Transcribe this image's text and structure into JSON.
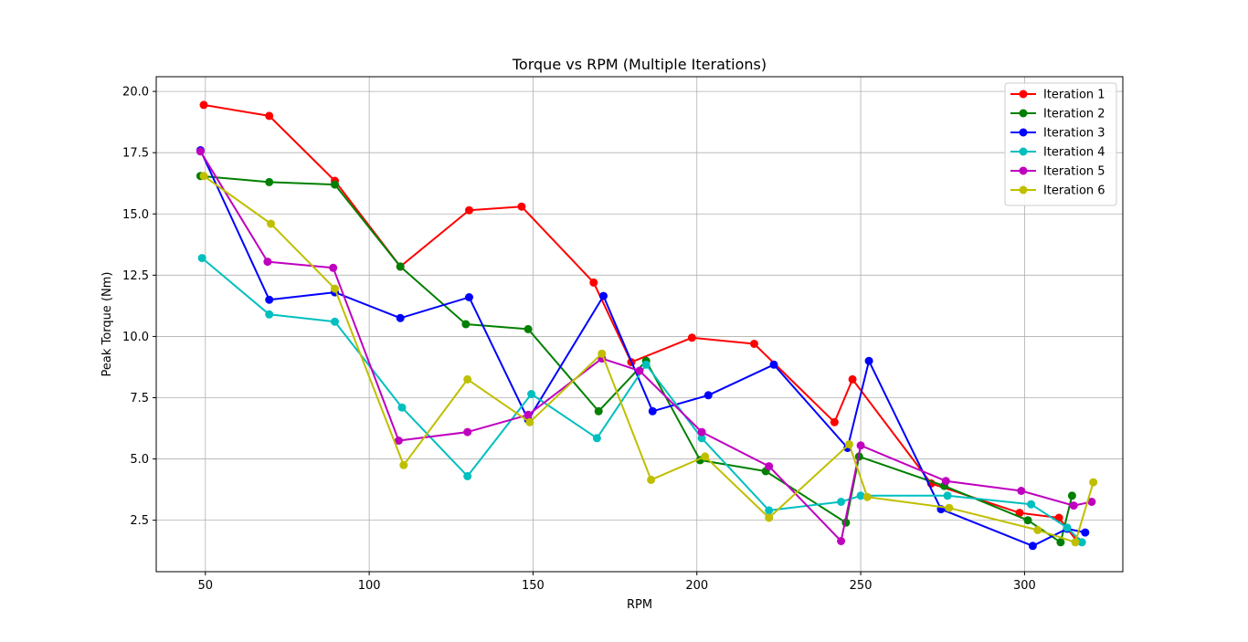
{
  "chart_data": {
    "type": "line",
    "title": "Torque vs RPM (Multiple Iterations)",
    "xlabel": "RPM",
    "ylabel": "Peak Torque (Nm)",
    "xlim": [
      35,
      330
    ],
    "ylim": [
      0.4,
      20.6
    ],
    "xticks": [
      50,
      100,
      150,
      200,
      250,
      300
    ],
    "xtick_labels": [
      "50",
      "100",
      "150",
      "200",
      "250",
      "300"
    ],
    "yticks": [
      2.5,
      5.0,
      7.5,
      10.0,
      12.5,
      15.0,
      17.5,
      20.0
    ],
    "ytick_labels": [
      "2.5",
      "5.0",
      "7.5",
      "10.0",
      "12.5",
      "15.0",
      "17.5",
      "20.0"
    ],
    "grid": true,
    "legend_position": "top-right",
    "series": [
      {
        "name": "Iteration 1",
        "color": "#ff0000",
        "points": [
          [
            49.5,
            19.45
          ],
          [
            69.5,
            19.0
          ],
          [
            89.5,
            16.35
          ],
          [
            109.5,
            12.85
          ],
          [
            130.5,
            15.15
          ],
          [
            146.5,
            15.3
          ],
          [
            168.5,
            12.2
          ],
          [
            180,
            8.95
          ],
          [
            198.5,
            9.95
          ],
          [
            217.5,
            9.7
          ],
          [
            242,
            6.5
          ],
          [
            247.5,
            8.25
          ],
          [
            271.5,
            4.0
          ],
          [
            298.5,
            2.8
          ],
          [
            310.5,
            2.6
          ],
          [
            316,
            1.65
          ]
        ]
      },
      {
        "name": "Iteration 2",
        "color": "#008000",
        "points": [
          [
            48.5,
            16.55
          ],
          [
            69.5,
            16.3
          ],
          [
            89.5,
            16.2
          ],
          [
            109.5,
            12.85
          ],
          [
            129.5,
            10.5
          ],
          [
            148.5,
            10.3
          ],
          [
            170,
            6.95
          ],
          [
            184.5,
            9.0
          ],
          [
            201,
            4.95
          ],
          [
            221,
            4.5
          ],
          [
            245.5,
            2.4
          ],
          [
            249.5,
            5.1
          ],
          [
            275.5,
            3.9
          ],
          [
            301,
            2.5
          ],
          [
            311,
            1.6
          ],
          [
            314.5,
            3.5
          ]
        ]
      },
      {
        "name": "Iteration 3",
        "color": "#0000ff",
        "points": [
          [
            48.5,
            17.6
          ],
          [
            69.5,
            11.5
          ],
          [
            89.5,
            11.8
          ],
          [
            109.5,
            10.75
          ],
          [
            130.5,
            11.6
          ],
          [
            148.5,
            6.6
          ],
          [
            171.5,
            11.65
          ],
          [
            186.5,
            6.95
          ],
          [
            203.5,
            7.6
          ],
          [
            223.5,
            8.85
          ],
          [
            246,
            5.45
          ],
          [
            252.5,
            9.0
          ],
          [
            274.5,
            2.95
          ],
          [
            302.5,
            1.45
          ],
          [
            313,
            2.15
          ],
          [
            318.5,
            2.0
          ]
        ]
      },
      {
        "name": "Iteration 4",
        "color": "#00bfbf",
        "points": [
          [
            49,
            13.2
          ],
          [
            69.5,
            10.9
          ],
          [
            89.5,
            10.6
          ],
          [
            110,
            7.1
          ],
          [
            130,
            4.3
          ],
          [
            149.5,
            7.65
          ],
          [
            169.5,
            5.85
          ],
          [
            184.5,
            8.85
          ],
          [
            201.5,
            5.85
          ],
          [
            222,
            2.9
          ],
          [
            244,
            3.25
          ],
          [
            250,
            3.5
          ],
          [
            276.5,
            3.5
          ],
          [
            302,
            3.15
          ],
          [
            313,
            2.2
          ],
          [
            317.5,
            1.6
          ]
        ]
      },
      {
        "name": "Iteration 5",
        "color": "#bf00bf",
        "points": [
          [
            48.5,
            17.55
          ],
          [
            69,
            13.05
          ],
          [
            89,
            12.8
          ],
          [
            109,
            5.75
          ],
          [
            130,
            6.1
          ],
          [
            148.5,
            6.8
          ],
          [
            171,
            9.1
          ],
          [
            182.5,
            8.6
          ],
          [
            201.5,
            6.1
          ],
          [
            222,
            4.7
          ],
          [
            244,
            1.65
          ],
          [
            250,
            5.55
          ],
          [
            276,
            4.1
          ],
          [
            299,
            3.7
          ],
          [
            315,
            3.1
          ],
          [
            320.5,
            3.25
          ]
        ]
      },
      {
        "name": "Iteration 6",
        "color": "#bfbf00",
        "points": [
          [
            49.5,
            16.55
          ],
          [
            70,
            14.6
          ],
          [
            89.5,
            11.95
          ],
          [
            110.5,
            4.75
          ],
          [
            130,
            8.25
          ],
          [
            149,
            6.5
          ],
          [
            171,
            9.3
          ],
          [
            186,
            4.15
          ],
          [
            202.5,
            5.1
          ],
          [
            222,
            2.6
          ],
          [
            246.5,
            5.6
          ],
          [
            252,
            3.45
          ],
          [
            277,
            3.0
          ],
          [
            304,
            2.1
          ],
          [
            315.5,
            1.6
          ],
          [
            321,
            4.05
          ]
        ]
      }
    ]
  }
}
